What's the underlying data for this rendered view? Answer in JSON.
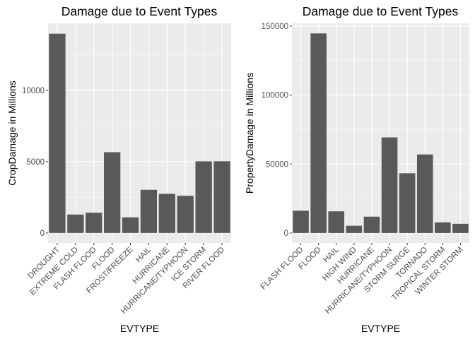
{
  "chart_data": [
    {
      "type": "bar",
      "title": "Damage due to Event Types",
      "xlabel": "EVTYPE",
      "ylabel": "CropDamage in Millions",
      "categories": [
        "DROUGHT",
        "EXTREME COLD",
        "FLASH FLOOD",
        "FLOOD",
        "FROST/FREEZE",
        "HAIL",
        "HURRICANE",
        "HURRICANE/TYPHOON",
        "ICE STORM",
        "RIVER FLOOD"
      ],
      "values": [
        13973,
        1293,
        1421,
        5662,
        1094,
        3026,
        2742,
        2608,
        5022,
        5029
      ],
      "ylim": [
        -700,
        14700
      ],
      "yticks": [
        0,
        5000,
        10000
      ],
      "ytick_labels": [
        "0",
        "5000",
        "10000"
      ],
      "grid": true,
      "bar_color": "#595959",
      "panel_color": "#ebebeb"
    },
    {
      "type": "bar",
      "title": "Damage due to Event Types",
      "xlabel": "EVTYPE",
      "ylabel": "PropertyDamage in Millions",
      "categories": [
        "FLASH FLOOD",
        "FLOOD",
        "HAIL",
        "HIGH WIND",
        "HURRICANE",
        "HURRICANE/TYPHOON",
        "STORM SURGE",
        "TORNADO",
        "TROPICAL STORM",
        "WINTER STORM"
      ],
      "values": [
        16140,
        144658,
        15732,
        5270,
        11868,
        69306,
        43324,
        56937,
        7704,
        6689
      ],
      "ylim": [
        -7200,
        152000
      ],
      "yticks": [
        0,
        50000,
        100000,
        150000
      ],
      "ytick_labels": [
        "0",
        "50000",
        "100000",
        "150000"
      ],
      "grid": true,
      "bar_color": "#595959",
      "panel_color": "#ebebeb"
    }
  ]
}
